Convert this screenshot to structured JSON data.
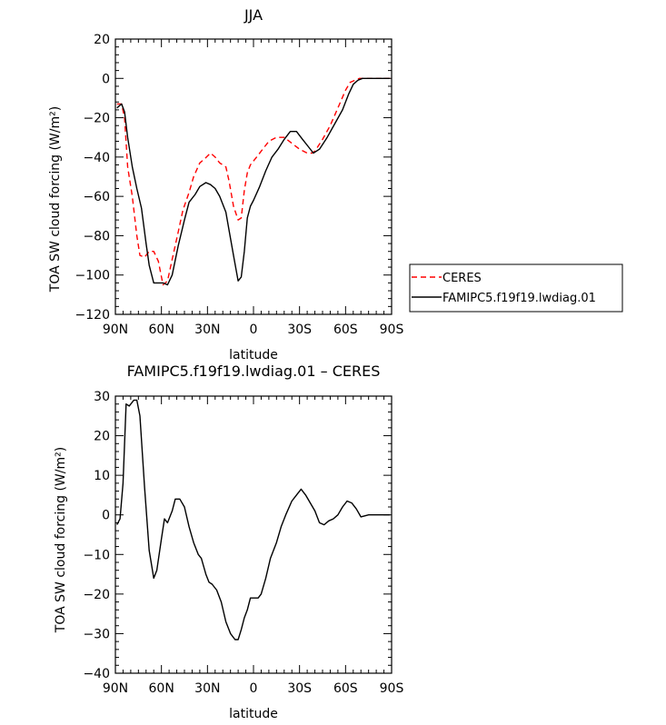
{
  "chart_data": [
    {
      "type": "line",
      "title": "JJA",
      "xlabel": "latitude",
      "ylabel": "TOA SW cloud forcing (W/m²)",
      "x_ticks": [
        {
          "value": 90,
          "label": "90N"
        },
        {
          "value": 60,
          "label": "60N"
        },
        {
          "value": 30,
          "label": "30N"
        },
        {
          "value": 0,
          "label": "0"
        },
        {
          "value": -30,
          "label": "30S"
        },
        {
          "value": -60,
          "label": "60S"
        },
        {
          "value": -90,
          "label": "90S"
        }
      ],
      "y_ticks": [
        20,
        0,
        -20,
        -40,
        -60,
        -80,
        -100,
        -120
      ],
      "xlim": [
        90,
        -90
      ],
      "ylim": [
        -120,
        20
      ],
      "legend_placement": "right",
      "series": [
        {
          "name": "CERES",
          "color": "#ff0000",
          "dash": "dashed",
          "x": [
            89,
            86,
            84,
            82,
            79,
            76,
            74,
            71,
            68,
            65,
            62,
            59,
            56,
            53,
            49,
            46,
            42,
            39,
            35,
            32,
            28,
            25,
            22,
            18,
            16,
            13,
            10,
            8,
            6,
            4,
            2,
            0,
            -2,
            -5,
            -10,
            -15,
            -20,
            -25,
            -30,
            -35,
            -38,
            -40,
            -45,
            -50,
            -55,
            -60,
            -63,
            -66,
            -69,
            -72,
            -75,
            -80,
            -85,
            -89
          ],
          "y": [
            -13,
            -13,
            -20,
            -45,
            -60,
            -80,
            -90,
            -91,
            -88,
            -88,
            -93,
            -105,
            -103,
            -92,
            -78,
            -67,
            -58,
            -50,
            -43,
            -41,
            -38,
            -40,
            -43,
            -45,
            -52,
            -65,
            -72,
            -71,
            -57,
            -48,
            -44,
            -42,
            -40,
            -37,
            -32,
            -30,
            -30,
            -33,
            -36,
            -38,
            -38,
            -37,
            -31,
            -24,
            -15,
            -6,
            -2,
            -1,
            0,
            0,
            0,
            0,
            0,
            0
          ]
        },
        {
          "name": "FAMIPC5.f19f19.lwdiag.01",
          "color": "#000000",
          "dash": "solid",
          "x": [
            89,
            86,
            84,
            82,
            79,
            76,
            73,
            70,
            68,
            65,
            62,
            59,
            56,
            53,
            49,
            45,
            42,
            38,
            35,
            31,
            28,
            25,
            22,
            18,
            16,
            13,
            10,
            8,
            6,
            4,
            2,
            0,
            -4,
            -8,
            -12,
            -16,
            -20,
            -24,
            -28,
            -32,
            -36,
            -39,
            -43,
            -48,
            -53,
            -58,
            -62,
            -65,
            -68,
            -71,
            -75,
            -80,
            -85,
            -89
          ],
          "y": [
            -15,
            -13,
            -17,
            -30,
            -45,
            -56,
            -66,
            -84,
            -95,
            -104,
            -104,
            -104,
            -105,
            -100,
            -85,
            -72,
            -63,
            -59,
            -55,
            -53,
            -54,
            -56,
            -60,
            -68,
            -77,
            -90,
            -103,
            -101,
            -88,
            -71,
            -65,
            -62,
            -55,
            -47,
            -40,
            -36,
            -31,
            -27,
            -27,
            -31,
            -35,
            -38,
            -36,
            -30,
            -23,
            -16,
            -8,
            -3,
            -1,
            0,
            0,
            0,
            0,
            0
          ]
        }
      ]
    },
    {
      "type": "line",
      "title": "FAMIPC5.f19f19.lwdiag.01 – CERES",
      "xlabel": "latitude",
      "ylabel": "TOA SW cloud forcing (W/m²)",
      "x_ticks": [
        {
          "value": 90,
          "label": "90N"
        },
        {
          "value": 60,
          "label": "60N"
        },
        {
          "value": 30,
          "label": "30N"
        },
        {
          "value": 0,
          "label": "0"
        },
        {
          "value": -30,
          "label": "30S"
        },
        {
          "value": -60,
          "label": "60S"
        },
        {
          "value": -90,
          "label": "90S"
        }
      ],
      "y_ticks": [
        30,
        20,
        10,
        0,
        -10,
        -20,
        -30,
        -40
      ],
      "xlim": [
        90,
        -90
      ],
      "ylim": [
        -40,
        30
      ],
      "series": [
        {
          "color": "#000000",
          "dash": "solid",
          "x": [
            89,
            87,
            85,
            83,
            81,
            78,
            76,
            74,
            71,
            68,
            65,
            63,
            60,
            58,
            56,
            53,
            51,
            48,
            45,
            42,
            39,
            36,
            34,
            31,
            29,
            27,
            24,
            21,
            18,
            15,
            12,
            10,
            8,
            6,
            4,
            2,
            0,
            -3,
            -5,
            -8,
            -11,
            -15,
            -18,
            -21,
            -25,
            -28,
            -31,
            -34,
            -37,
            -40,
            -43,
            -46,
            -49,
            -52,
            -55,
            -58,
            -61,
            -64,
            -67,
            -70,
            -75,
            -80,
            -85,
            -89
          ],
          "y": [
            -2.5,
            -1,
            8,
            28,
            27.5,
            29,
            29,
            25,
            7,
            -9,
            -16,
            -14,
            -6,
            -1,
            -2,
            1,
            4,
            4,
            2,
            -3,
            -7,
            -10,
            -11,
            -15,
            -17,
            -17.5,
            -19,
            -22,
            -27,
            -30,
            -31.5,
            -31.5,
            -29,
            -26,
            -24,
            -21,
            -21,
            -21,
            -20,
            -16,
            -11,
            -7,
            -3,
            0,
            3.5,
            5,
            6.5,
            5,
            3,
            1,
            -2,
            -2.5,
            -1.5,
            -1,
            0,
            2,
            3.5,
            3,
            1.5,
            -0.5,
            0,
            0,
            0,
            0
          ]
        }
      ]
    }
  ]
}
